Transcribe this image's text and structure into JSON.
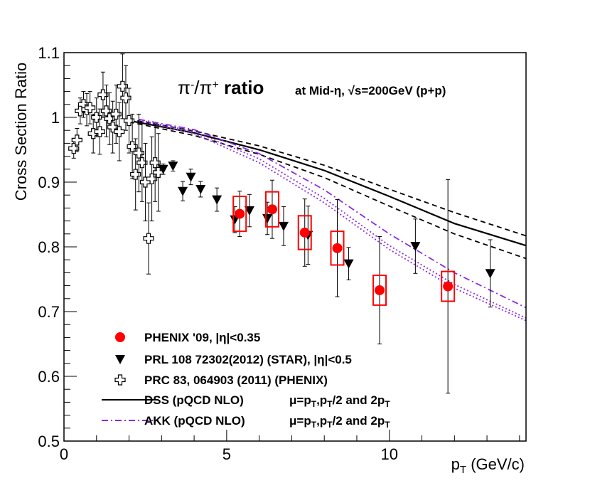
{
  "chart_data": {
    "type": "scatter",
    "title": {
      "main_prefix": "π",
      "main_sup1": "-",
      "main_mid": "/π",
      "main_sup2": "+",
      "main_bold": " ratio",
      "sub": "at Mid-η, √s=200GeV (p+p)"
    },
    "xlabel": {
      "base": "p",
      "sub": "T",
      "unit": " (GeV/c)"
    },
    "ylabel": "Cross Section Ratio",
    "xlim": [
      0,
      14.2
    ],
    "ylim": [
      0.5,
      1.1
    ],
    "x_ticks": [
      {
        "v": 0,
        "label": "0"
      },
      {
        "v": 5,
        "label": "5"
      },
      {
        "v": 10,
        "label": "10"
      }
    ],
    "y_ticks": [
      {
        "v": 0.5,
        "label": "0.5"
      },
      {
        "v": 0.6,
        "label": "0.6"
      },
      {
        "v": 0.7,
        "label": "0.7"
      },
      {
        "v": 0.8,
        "label": "0.8"
      },
      {
        "v": 0.9,
        "label": "0.9"
      },
      {
        "v": 1.0,
        "label": "1"
      },
      {
        "v": 1.1,
        "label": "1.1"
      }
    ],
    "series": [
      {
        "name": "PHENIX '09,   |η|<0.35",
        "marker": "circle",
        "color": "#ff0000",
        "syscolor": "#ff0000",
        "points": [
          {
            "x": 5.4,
            "y": 0.851,
            "err": 0.035,
            "sys": 0.027
          },
          {
            "x": 6.4,
            "y": 0.858,
            "err": 0.045,
            "sys": 0.027
          },
          {
            "x": 7.4,
            "y": 0.822,
            "err": 0.052,
            "sys": 0.026
          },
          {
            "x": 8.4,
            "y": 0.798,
            "err": 0.075,
            "sys": 0.026
          },
          {
            "x": 9.7,
            "y": 0.733,
            "err": 0.083,
            "sys": 0.023
          },
          {
            "x": 11.8,
            "y": 0.739,
            "err": 0.165,
            "sys": 0.023
          }
        ]
      },
      {
        "name": "PRL 108 72302(2012) (STAR),   |η|<0.5",
        "marker": "triangle-down",
        "color": "#000000",
        "points": [
          {
            "x": 3.05,
            "y": 0.92,
            "err": 0.008
          },
          {
            "x": 3.35,
            "y": 0.925,
            "err": 0.008
          },
          {
            "x": 3.65,
            "y": 0.886,
            "err": 0.015
          },
          {
            "x": 3.9,
            "y": 0.908,
            "err": 0.012
          },
          {
            "x": 4.2,
            "y": 0.889,
            "err": 0.012
          },
          {
            "x": 4.7,
            "y": 0.873,
            "err": 0.018
          },
          {
            "x": 5.25,
            "y": 0.842,
            "err": 0.02
          },
          {
            "x": 5.7,
            "y": 0.856,
            "err": 0.025
          },
          {
            "x": 6.25,
            "y": 0.844,
            "err": 0.025
          },
          {
            "x": 6.75,
            "y": 0.832,
            "err": 0.03
          },
          {
            "x": 7.5,
            "y": 0.818,
            "err": 0.045
          },
          {
            "x": 8.75,
            "y": 0.774,
            "err": 0.025
          },
          {
            "x": 10.8,
            "y": 0.801,
            "err": 0.042
          },
          {
            "x": 13.1,
            "y": 0.759,
            "err": 0.052
          }
        ]
      },
      {
        "name": "PRC 83, 064903 (2011) (PHENIX)",
        "marker": "open-cross",
        "color": "#000000",
        "points": [
          {
            "x": 0.3,
            "y": 0.952,
            "err": 0.015
          },
          {
            "x": 0.4,
            "y": 0.965,
            "err": 0.018
          },
          {
            "x": 0.5,
            "y": 1.01,
            "err": 0.02
          },
          {
            "x": 0.6,
            "y": 1.02,
            "err": 0.02
          },
          {
            "x": 0.7,
            "y": 1.012,
            "err": 0.025
          },
          {
            "x": 0.8,
            "y": 1.015,
            "err": 0.025
          },
          {
            "x": 0.9,
            "y": 0.975,
            "err": 0.03
          },
          {
            "x": 1.0,
            "y": 1.0,
            "err": 0.03
          },
          {
            "x": 1.1,
            "y": 0.978,
            "err": 0.035
          },
          {
            "x": 1.2,
            "y": 1.035,
            "err": 0.035
          },
          {
            "x": 1.3,
            "y": 1.01,
            "err": 0.04
          },
          {
            "x": 1.4,
            "y": 0.998,
            "err": 0.04
          },
          {
            "x": 1.5,
            "y": 0.985,
            "err": 0.04
          },
          {
            "x": 1.6,
            "y": 1.005,
            "err": 0.045
          },
          {
            "x": 1.7,
            "y": 0.978,
            "err": 0.045
          },
          {
            "x": 1.8,
            "y": 1.048,
            "err": 0.05
          },
          {
            "x": 1.9,
            "y": 1.03,
            "err": 0.05
          },
          {
            "x": 2.0,
            "y": 0.995,
            "err": 0.05
          },
          {
            "x": 2.1,
            "y": 0.955,
            "err": 0.05
          },
          {
            "x": 2.2,
            "y": 0.912,
            "err": 0.055
          },
          {
            "x": 2.3,
            "y": 0.945,
            "err": 0.06
          },
          {
            "x": 2.4,
            "y": 0.93,
            "err": 0.06
          },
          {
            "x": 2.5,
            "y": 0.9,
            "err": 0.06
          },
          {
            "x": 2.6,
            "y": 0.813,
            "err": 0.055
          },
          {
            "x": 2.7,
            "y": 0.905,
            "err": 0.065
          },
          {
            "x": 2.8,
            "y": 0.93,
            "err": 0.06
          },
          {
            "x": 2.9,
            "y": 0.915,
            "err": 0.06
          }
        ]
      }
    ],
    "curves": [
      {
        "name": "DSS (pQCD NLO)",
        "color": "#000000",
        "dash": "solid",
        "points": [
          [
            2.0,
            0.995
          ],
          [
            4.0,
            0.976
          ],
          [
            6.0,
            0.95
          ],
          [
            8.0,
            0.918
          ],
          [
            10.0,
            0.878
          ],
          [
            12.0,
            0.836
          ],
          [
            14.2,
            0.802
          ]
        ]
      },
      {
        "name": "DSS pT/2",
        "color": "#000000",
        "dash": "dashed",
        "points": [
          [
            2.0,
            0.997
          ],
          [
            4.0,
            0.979
          ],
          [
            6.0,
            0.956
          ],
          [
            8.0,
            0.926
          ],
          [
            10.0,
            0.889
          ],
          [
            12.0,
            0.853
          ],
          [
            14.2,
            0.817
          ]
        ]
      },
      {
        "name": "DSS 2pT",
        "color": "#000000",
        "dash": "dashed",
        "points": [
          [
            2.0,
            0.993
          ],
          [
            4.0,
            0.972
          ],
          [
            6.0,
            0.943
          ],
          [
            8.0,
            0.907
          ],
          [
            10.0,
            0.863
          ],
          [
            12.0,
            0.82
          ],
          [
            14.2,
            0.782
          ]
        ]
      },
      {
        "name": "AKK (pQCD NLO)",
        "color": "#8a2be2",
        "dash": "dashdot",
        "points": [
          [
            2.3,
            0.997
          ],
          [
            4.0,
            0.981
          ],
          [
            6.0,
            0.944
          ],
          [
            8.0,
            0.888
          ],
          [
            10.0,
            0.82
          ],
          [
            12.0,
            0.76
          ],
          [
            14.2,
            0.706
          ]
        ]
      },
      {
        "name": "AKK pT/2",
        "color": "#8a2be2",
        "dash": "dotted",
        "points": [
          [
            2.3,
            0.996
          ],
          [
            4.0,
            0.978
          ],
          [
            6.0,
            0.936
          ],
          [
            8.0,
            0.875
          ],
          [
            10.0,
            0.802
          ],
          [
            12.0,
            0.742
          ],
          [
            14.2,
            0.69
          ]
        ]
      },
      {
        "name": "AKK 2pT",
        "color": "#8a2be2",
        "dash": "dotted",
        "points": [
          [
            2.3,
            0.995
          ],
          [
            4.0,
            0.975
          ],
          [
            6.0,
            0.93
          ],
          [
            8.0,
            0.868
          ],
          [
            10.0,
            0.796
          ],
          [
            12.0,
            0.736
          ],
          [
            14.2,
            0.686
          ]
        ]
      }
    ],
    "legend": {
      "placement": "bottom-left",
      "entries": [
        {
          "marker": "circle",
          "color": "#ff0000",
          "text": "PHENIX '09,   |η|<0.35"
        },
        {
          "marker": "triangle-down",
          "color": "#000000",
          "text": "PRL 108 72302(2012) (STAR),   |η|<0.5"
        },
        {
          "marker": "open-cross",
          "color": "#000000",
          "text": "PRC 83, 064903 (2011) (PHENIX)"
        },
        {
          "marker": "line",
          "color": "#000000",
          "text": "DSS (pQCD NLO)",
          "note": "μ=pT,pT/2 and 2pT"
        },
        {
          "marker": "dashdot",
          "color": "#8a2be2",
          "text": "AKK (pQCD NLO)",
          "note": "μ=pT,pT/2 and 2pT"
        }
      ]
    }
  }
}
